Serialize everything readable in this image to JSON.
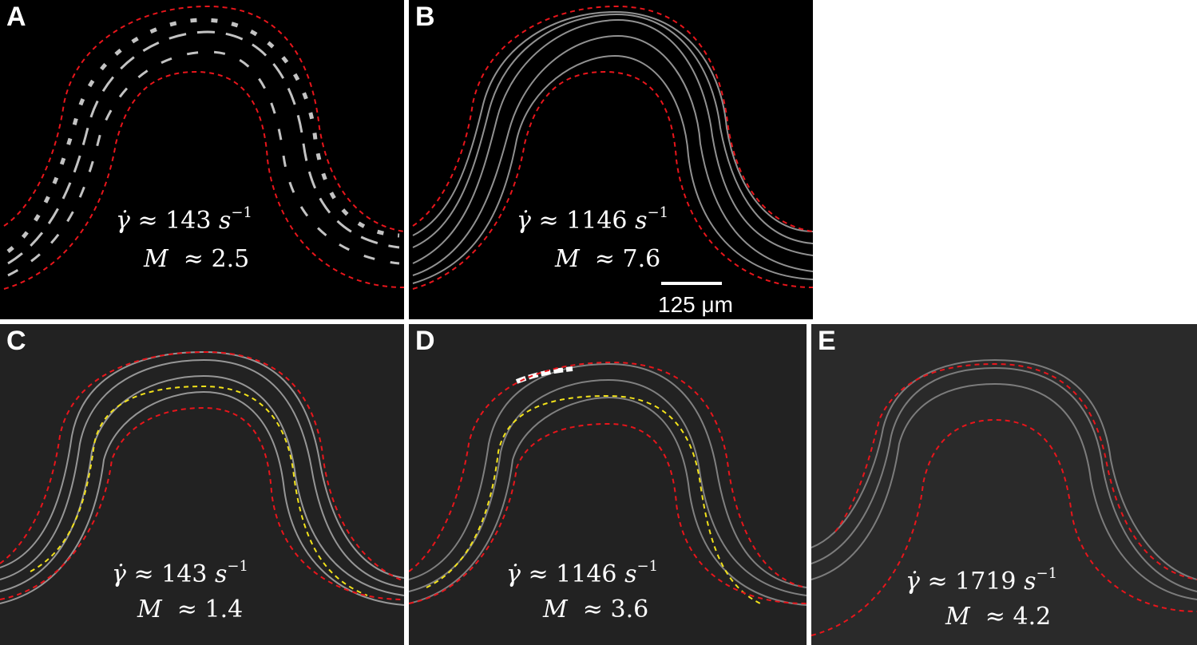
{
  "panels": [
    {
      "label": "A",
      "shear_symbol": "γ̇",
      "approx": "≈",
      "shear_value": "143",
      "shear_unit": "s",
      "shear_exp": "−1",
      "m_symbol": "M",
      "m_value": "2.5",
      "background": "#000000"
    },
    {
      "label": "B",
      "shear_symbol": "γ̇",
      "approx": "≈",
      "shear_value": "1146",
      "shear_unit": "s",
      "shear_exp": "−1",
      "m_symbol": "M",
      "m_value": "7.6",
      "background": "#000000"
    },
    {
      "label": "C",
      "shear_symbol": "γ̇",
      "approx": "≈",
      "shear_value": "143",
      "shear_unit": "s",
      "shear_exp": "−1",
      "m_symbol": "M",
      "m_value": "1.4",
      "background": "#222222"
    },
    {
      "label": "D",
      "shear_symbol": "γ̇",
      "approx": "≈",
      "shear_value": "1146",
      "shear_unit": "s",
      "shear_exp": "−1",
      "m_symbol": "M",
      "m_value": "3.6",
      "background": "#222222"
    },
    {
      "label": "E",
      "shear_symbol": "γ̇",
      "approx": "≈",
      "shear_value": "1719",
      "shear_unit": "s",
      "shear_exp": "−1",
      "m_symbol": "M",
      "m_value": "4.2",
      "background": "#2a2a2a"
    }
  ],
  "scale_bar": {
    "label": "125 μm"
  },
  "colors": {
    "wall_outline": "#e8151b",
    "centerline": "#f2e21a",
    "fiber": "#e6e6e6"
  }
}
